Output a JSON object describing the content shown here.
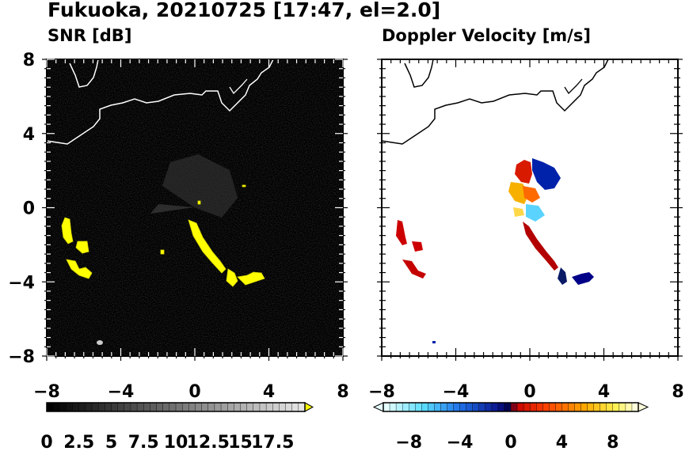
{
  "title": "Fukuoka, 20210725 [17:47, el=2.0]",
  "chart_data": [
    {
      "type": "heatmap",
      "panel_title": "SNR [dB]",
      "xlim": [
        -8,
        8
      ],
      "ylim": [
        -8,
        8
      ],
      "x_ticks": [
        "−8",
        "−4",
        "0",
        "4",
        "8"
      ],
      "y_ticks": [
        "8",
        "4",
        "0",
        "−4",
        "−8"
      ],
      "background": "#000000",
      "colorbar": {
        "range": [
          0,
          20
        ],
        "tick_labels": [
          "0",
          "2.5",
          "5",
          "7.5",
          "10",
          "12.5",
          "15",
          "17.5"
        ],
        "colormap": "grayscale-to-yellow",
        "extend": "max"
      }
    },
    {
      "type": "heatmap",
      "panel_title": "Doppler Velocity [m/s]",
      "xlim": [
        -8,
        8
      ],
      "ylim": [
        -8,
        8
      ],
      "x_ticks": [
        "−8",
        "−4",
        "0",
        "4",
        "8"
      ],
      "y_ticks": [],
      "background": "#ffffff",
      "colorbar": {
        "range": [
          -10,
          10
        ],
        "tick_labels": [
          "−8",
          "−4",
          "0",
          "4",
          "8"
        ],
        "colormap": "blue-white-red-yellow diverging",
        "extend": "both"
      }
    }
  ]
}
